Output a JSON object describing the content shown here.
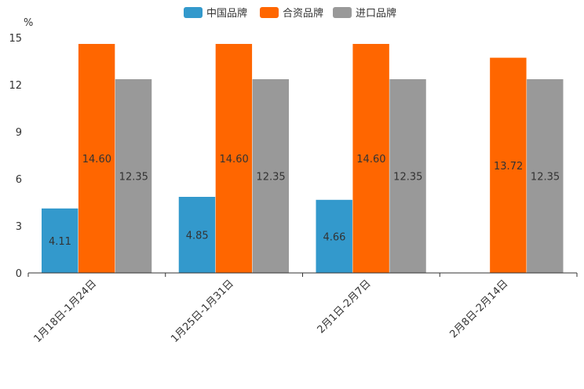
{
  "chart_data": {
    "type": "bar",
    "unit_label": "%",
    "categories": [
      "1月18日-1月24日",
      "1月25日-1月31日",
      "2月1日-2月7日",
      "2月8日-2月14日"
    ],
    "series": [
      {
        "name": "中国品牌",
        "color": "#3399cc",
        "values": [
          4.11,
          4.85,
          4.66,
          null
        ],
        "labels": [
          "4.11",
          "4.85",
          "4.66",
          ""
        ]
      },
      {
        "name": "合资品牌",
        "color": "#ff6600",
        "values": [
          14.6,
          14.6,
          14.6,
          13.72
        ],
        "labels": [
          "14.60",
          "14.60",
          "14.60",
          "13.72"
        ]
      },
      {
        "name": "进口品牌",
        "color": "#999999",
        "values": [
          12.35,
          12.35,
          12.35,
          12.35
        ],
        "labels": [
          "12.35",
          "12.35",
          "12.35",
          "12.35"
        ]
      }
    ],
    "ylim": [
      0,
      15
    ],
    "yticks": [
      0,
      3,
      6,
      9,
      12,
      15
    ],
    "legend_position": "top-center",
    "grid": false
  }
}
